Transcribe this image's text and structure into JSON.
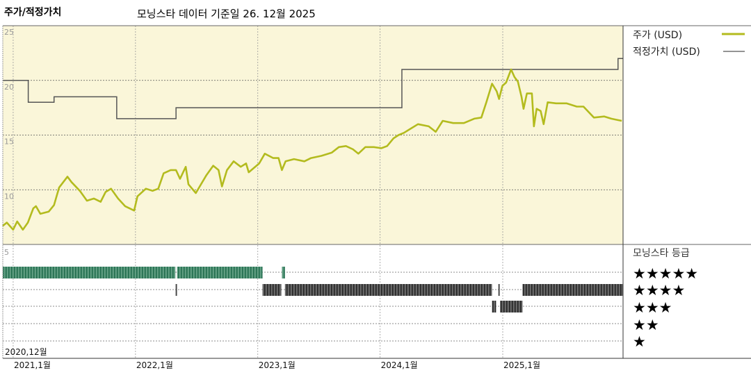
{
  "header": {
    "title": "주가/적정가치",
    "subtitle": "모닝스타 데이터 기준일 26. 12월 2025"
  },
  "colors": {
    "price": "#b3bb1e",
    "fair_value": "#555555",
    "plot_background": "#faf6d9",
    "rating_5": "#2f7f5f",
    "rating_other": "#333333"
  },
  "chart_data": [
    {
      "type": "line",
      "title": "주가/적정가치",
      "x_type": "date",
      "xlim": [
        "2020-12-01",
        "2025-12-26"
      ],
      "ylim": [
        5,
        25
      ],
      "y_ticks": [
        "25",
        "20",
        "15",
        "10"
      ],
      "x_ticks": [
        {
          "date": "2020-12-01",
          "label": "2020,12월"
        },
        {
          "date": "2021-01-01",
          "label": "2021,1월"
        },
        {
          "date": "2022-01-01",
          "label": "2022,1월"
        },
        {
          "date": "2023-01-01",
          "label": "2023,1월"
        },
        {
          "date": "2024-01-01",
          "label": "2024,1월"
        },
        {
          "date": "2025-01-01",
          "label": "2025,1월"
        }
      ],
      "grid": true,
      "legend_position": "right",
      "series": [
        {
          "name": "주가 (USD)",
          "step": false,
          "points": [
            [
              "2020-12-01",
              6.7
            ],
            [
              "2020-12-13",
              7.0
            ],
            [
              "2021-01-01",
              6.35
            ],
            [
              "2021-01-13",
              7.1
            ],
            [
              "2021-01-30",
              6.35
            ],
            [
              "2021-02-14",
              7.0
            ],
            [
              "2021-03-02",
              8.3
            ],
            [
              "2021-03-10",
              8.5
            ],
            [
              "2021-03-23",
              7.8
            ],
            [
              "2021-04-17",
              8.0
            ],
            [
              "2021-05-03",
              8.6
            ],
            [
              "2021-05-18",
              10.2
            ],
            [
              "2021-06-12",
              11.2
            ],
            [
              "2021-06-24",
              10.7
            ],
            [
              "2021-07-19",
              9.9
            ],
            [
              "2021-08-09",
              9.0
            ],
            [
              "2021-08-30",
              9.2
            ],
            [
              "2021-09-19",
              8.9
            ],
            [
              "2021-10-04",
              9.8
            ],
            [
              "2021-10-20",
              10.1
            ],
            [
              "2021-11-10",
              9.2
            ],
            [
              "2021-12-01",
              8.5
            ],
            [
              "2021-12-28",
              8.1
            ],
            [
              "2022-01-07",
              9.4
            ],
            [
              "2022-02-01",
              10.1
            ],
            [
              "2022-02-21",
              9.9
            ],
            [
              "2022-03-10",
              10.1
            ],
            [
              "2022-03-26",
              11.5
            ],
            [
              "2022-04-16",
              11.8
            ],
            [
              "2022-05-02",
              11.8
            ],
            [
              "2022-05-14",
              11.0
            ],
            [
              "2022-05-31",
              12.1
            ],
            [
              "2022-06-08",
              10.5
            ],
            [
              "2022-06-30",
              9.7
            ],
            [
              "2022-07-31",
              11.3
            ],
            [
              "2022-08-21",
              12.2
            ],
            [
              "2022-09-06",
              11.8
            ],
            [
              "2022-09-16",
              10.3
            ],
            [
              "2022-10-01",
              11.8
            ],
            [
              "2022-10-21",
              12.6
            ],
            [
              "2022-11-11",
              12.1
            ],
            [
              "2022-11-27",
              12.4
            ],
            [
              "2022-12-05",
              11.6
            ],
            [
              "2023-01-05",
              12.4
            ],
            [
              "2023-01-22",
              13.3
            ],
            [
              "2023-02-16",
              12.9
            ],
            [
              "2023-03-04",
              12.9
            ],
            [
              "2023-03-14",
              11.8
            ],
            [
              "2023-03-25",
              12.6
            ],
            [
              "2023-04-19",
              12.8
            ],
            [
              "2023-05-20",
              12.6
            ],
            [
              "2023-06-09",
              12.9
            ],
            [
              "2023-07-10",
              13.1
            ],
            [
              "2023-08-10",
              13.4
            ],
            [
              "2023-08-31",
              13.9
            ],
            [
              "2023-09-21",
              14.0
            ],
            [
              "2023-10-12",
              13.7
            ],
            [
              "2023-10-28",
              13.3
            ],
            [
              "2023-11-18",
              13.9
            ],
            [
              "2023-12-13",
              13.9
            ],
            [
              "2024-01-05",
              13.8
            ],
            [
              "2024-01-22",
              14.0
            ],
            [
              "2024-02-10",
              14.7
            ],
            [
              "2024-02-25",
              15.0
            ],
            [
              "2024-03-12",
              15.2
            ],
            [
              "2024-04-02",
              15.6
            ],
            [
              "2024-04-23",
              16.0
            ],
            [
              "2024-05-25",
              15.8
            ],
            [
              "2024-06-15",
              15.3
            ],
            [
              "2024-07-06",
              16.3
            ],
            [
              "2024-08-06",
              16.1
            ],
            [
              "2024-09-07",
              16.1
            ],
            [
              "2024-10-08",
              16.5
            ],
            [
              "2024-10-29",
              16.6
            ],
            [
              "2024-11-13",
              18.0
            ],
            [
              "2024-11-30",
              19.7
            ],
            [
              "2024-12-14",
              19.0
            ],
            [
              "2024-12-21",
              18.3
            ],
            [
              "2024-12-31",
              19.5
            ],
            [
              "2025-01-11",
              19.8
            ],
            [
              "2025-01-26",
              21.0
            ],
            [
              "2025-02-05",
              20.3
            ],
            [
              "2025-02-15",
              19.9
            ],
            [
              "2025-02-26",
              18.5
            ],
            [
              "2025-03-04",
              17.4
            ],
            [
              "2025-03-14",
              18.8
            ],
            [
              "2025-03-29",
              18.8
            ],
            [
              "2025-04-04",
              15.8
            ],
            [
              "2025-04-12",
              17.4
            ],
            [
              "2025-04-24",
              17.2
            ],
            [
              "2025-05-03",
              16.0
            ],
            [
              "2025-05-15",
              18.0
            ],
            [
              "2025-06-09",
              17.9
            ],
            [
              "2025-07-10",
              17.9
            ],
            [
              "2025-08-10",
              17.6
            ],
            [
              "2025-08-30",
              17.6
            ],
            [
              "2025-09-30",
              16.6
            ],
            [
              "2025-10-31",
              16.7
            ],
            [
              "2025-11-21",
              16.5
            ],
            [
              "2025-12-22",
              16.3
            ]
          ]
        },
        {
          "name": "적정가치 (USD)",
          "step": true,
          "points": [
            [
              "2020-12-01",
              20.0
            ],
            [
              "2021-02-15",
              18.0
            ],
            [
              "2021-05-03",
              18.5
            ],
            [
              "2021-11-06",
              16.5
            ],
            [
              "2022-05-02",
              17.5
            ],
            [
              "2024-03-06",
              21.0
            ],
            [
              "2025-12-11",
              22.0
            ],
            [
              "2025-12-26",
              22.0
            ]
          ]
        }
      ]
    },
    {
      "type": "timeline",
      "title": "모닝스타 등급",
      "y_tick": "5",
      "rating_levels": [
        {
          "stars": 5,
          "label": "★★★★★"
        },
        {
          "stars": 4,
          "label": "★★★★"
        },
        {
          "stars": 3,
          "label": "★★★"
        },
        {
          "stars": 2,
          "label": "★★"
        },
        {
          "stars": 1,
          "label": "★"
        }
      ],
      "segments": [
        {
          "stars": 5,
          "start": "2020-12-01",
          "end": "2022-04-30"
        },
        {
          "stars": 4,
          "start": "2022-05-01",
          "end": "2022-05-04"
        },
        {
          "stars": 5,
          "start": "2022-05-05",
          "end": "2023-01-15"
        },
        {
          "stars": 4,
          "start": "2023-01-15",
          "end": "2023-03-12"
        },
        {
          "stars": 5,
          "start": "2023-03-14",
          "end": "2023-03-23"
        },
        {
          "stars": 4,
          "start": "2023-03-23",
          "end": "2024-11-30"
        },
        {
          "stars": 3,
          "start": "2024-11-30",
          "end": "2024-12-12"
        },
        {
          "stars": 4,
          "start": "2024-12-19",
          "end": "2024-12-22"
        },
        {
          "stars": 3,
          "start": "2024-12-24",
          "end": "2025-03-01"
        },
        {
          "stars": 4,
          "start": "2025-03-01",
          "end": "2025-12-26"
        }
      ]
    }
  ]
}
